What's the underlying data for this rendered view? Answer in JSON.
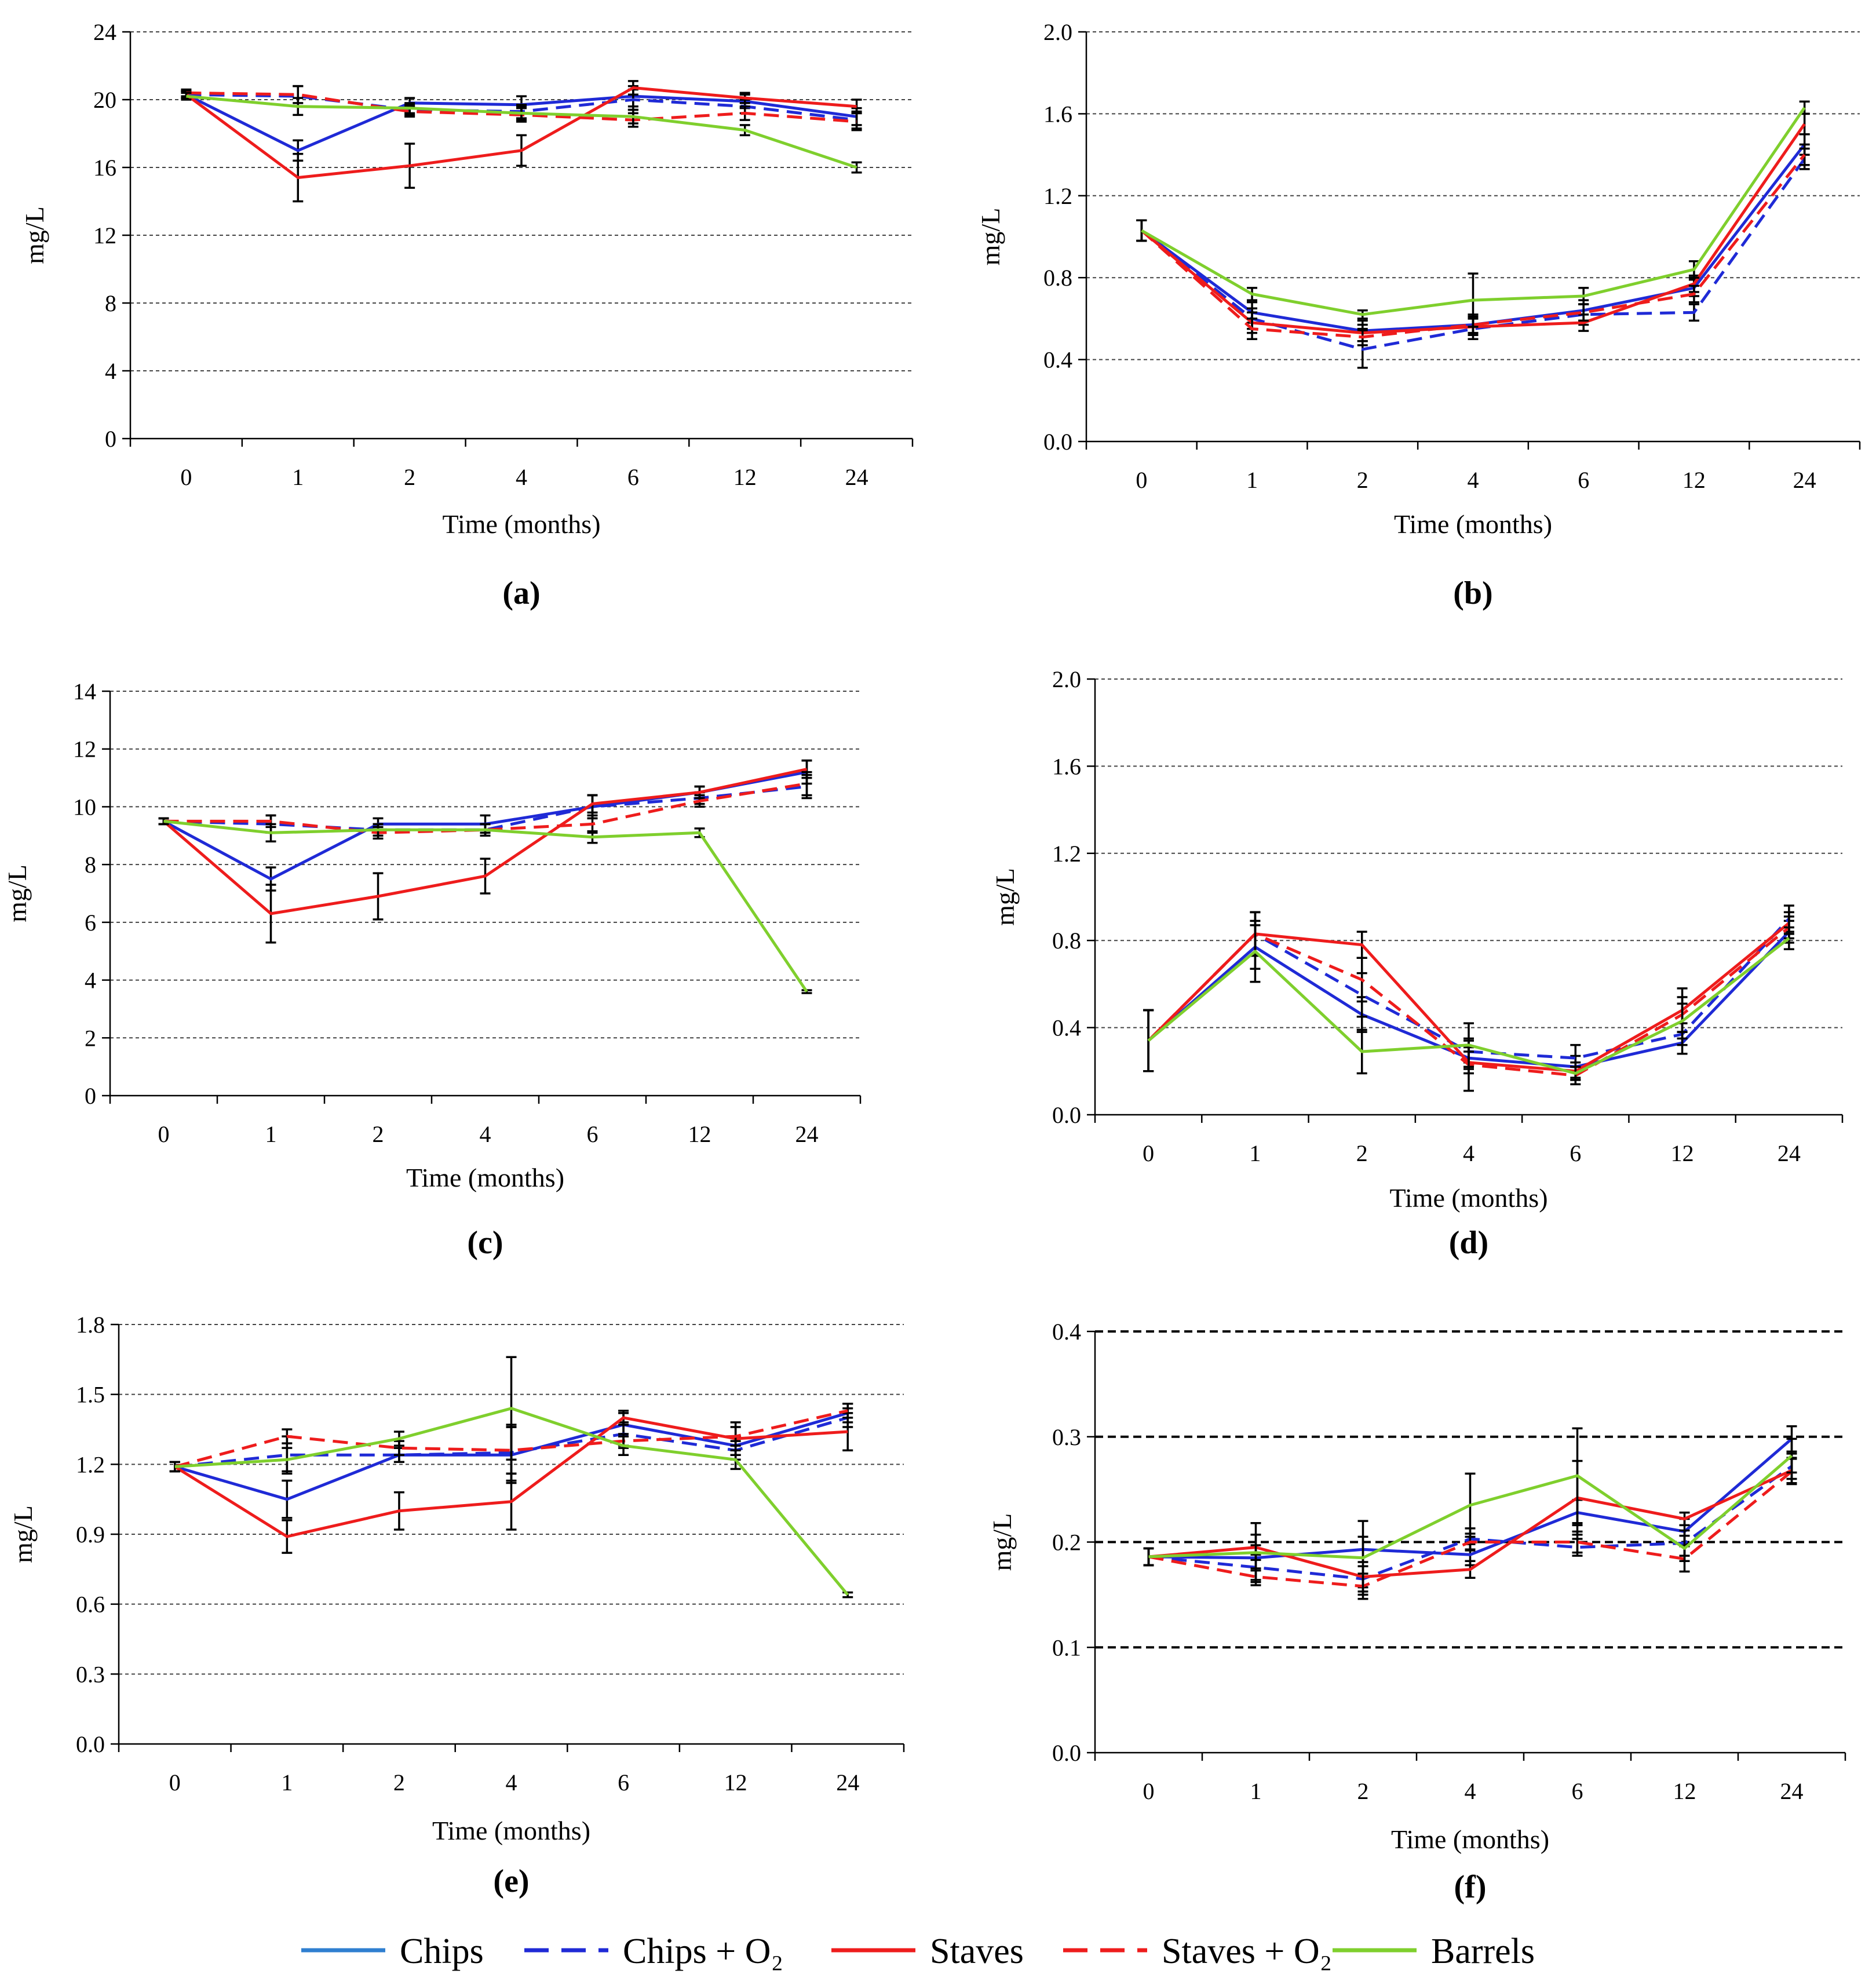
{
  "colors": {
    "chips": "#1f2ad6",
    "chips_o2": "#1f2ad6",
    "staves": "#ee1c1c",
    "staves_o2": "#ee1c1c",
    "barrels": "#7fcf2d",
    "legend_chips": "#2f7fd0"
  },
  "legend": [
    {
      "key": "chips",
      "label": "Chips",
      "dashed": false
    },
    {
      "key": "chips_o2",
      "label": "Chips + O₂",
      "dashed": true
    },
    {
      "key": "staves",
      "label": "Staves",
      "dashed": false
    },
    {
      "key": "staves_o2",
      "label": "Staves + O₂",
      "dashed": true
    },
    {
      "key": "barrels",
      "label": "Barrels",
      "dashed": false
    }
  ],
  "chart_data": [
    {
      "id": "a",
      "type": "line",
      "panel_label": "(a)",
      "categories": [
        "0",
        "1",
        "2",
        "4",
        "6",
        "12",
        "24"
      ],
      "xlabel": "Time (months)",
      "ylabel": "mg/L",
      "ylim": [
        0,
        24
      ],
      "yticks": [
        "0",
        "4",
        "8",
        "12",
        "16",
        "20",
        "24"
      ],
      "series": [
        {
          "name": "Chips",
          "key": "chips",
          "values": [
            20.3,
            17.0,
            19.8,
            19.7,
            20.2,
            19.9,
            19.0
          ],
          "err": [
            0.2,
            0.6,
            0.3,
            0.5,
            0.6,
            0.4,
            0.5
          ]
        },
        {
          "name": "Chips + O2",
          "key": "chips_o2",
          "values": [
            20.3,
            20.2,
            19.4,
            19.3,
            20.0,
            19.6,
            18.8
          ],
          "err": [
            0.2,
            0.6,
            0.3,
            0.4,
            0.6,
            0.4,
            0.5
          ]
        },
        {
          "name": "Staves",
          "key": "staves",
          "values": [
            20.3,
            15.4,
            16.1,
            17.0,
            20.7,
            20.1,
            19.6
          ],
          "err": [
            0.2,
            1.4,
            1.3,
            0.9,
            0.4,
            0.3,
            0.4
          ]
        },
        {
          "name": "Staves + O2",
          "key": "staves_o2",
          "values": [
            20.4,
            20.3,
            19.3,
            19.1,
            18.8,
            19.2,
            18.7
          ],
          "err": [
            0.2,
            0.5,
            0.3,
            0.4,
            0.4,
            0.4,
            0.5
          ]
        },
        {
          "name": "Barrels",
          "key": "barrels",
          "values": [
            20.2,
            19.6,
            19.5,
            19.2,
            19.0,
            18.2,
            16.0
          ],
          "err": [
            0.2,
            0.5,
            0.3,
            0.4,
            0.4,
            0.3,
            0.3
          ]
        }
      ]
    },
    {
      "id": "b",
      "type": "line",
      "panel_label": "(b)",
      "categories": [
        "0",
        "1",
        "2",
        "4",
        "6",
        "12",
        "24"
      ],
      "xlabel": "Time (months)",
      "ylabel": "mg/L",
      "ylim": [
        0,
        2
      ],
      "yticks": [
        "0.0",
        "0.4",
        "0.8",
        "1.2",
        "1.6",
        "2.0"
      ],
      "series": [
        {
          "name": "Chips",
          "key": "chips",
          "values": [
            1.03,
            0.63,
            0.54,
            0.57,
            0.64,
            0.75,
            1.45
          ],
          "err": [
            0.05,
            0.05,
            0.05,
            0.05,
            0.05,
            0.04,
            0.05
          ]
        },
        {
          "name": "Chips + O2",
          "key": "chips_o2",
          "values": [
            1.03,
            0.6,
            0.45,
            0.55,
            0.62,
            0.63,
            1.38
          ],
          "err": [
            0.05,
            0.05,
            0.09,
            0.05,
            0.05,
            0.04,
            0.05
          ]
        },
        {
          "name": "Staves",
          "key": "staves",
          "values": [
            1.03,
            0.58,
            0.53,
            0.56,
            0.58,
            0.77,
            1.55
          ],
          "err": [
            0.05,
            0.05,
            0.04,
            0.04,
            0.04,
            0.04,
            0.05
          ]
        },
        {
          "name": "Staves + O2",
          "key": "staves_o2",
          "values": [
            1.03,
            0.55,
            0.51,
            0.57,
            0.63,
            0.72,
            1.4
          ],
          "err": [
            0.05,
            0.05,
            0.04,
            0.04,
            0.04,
            0.04,
            0.05
          ]
        },
        {
          "name": "Barrels",
          "key": "barrels",
          "values": [
            1.03,
            0.72,
            0.62,
            0.69,
            0.71,
            0.84,
            1.63
          ],
          "err": [
            0.05,
            0.03,
            0.02,
            0.13,
            0.04,
            0.04,
            0.03
          ]
        }
      ]
    },
    {
      "id": "c",
      "type": "line",
      "panel_label": "(c)",
      "categories": [
        "0",
        "1",
        "2",
        "4",
        "6",
        "12",
        "24"
      ],
      "xlabel": "Time (months)",
      "ylabel": "mg/L",
      "ylim": [
        0,
        14
      ],
      "yticks": [
        "0",
        "2",
        "4",
        "6",
        "8",
        "10",
        "12",
        "14"
      ],
      "series": [
        {
          "name": "Chips",
          "key": "chips",
          "values": [
            9.5,
            7.5,
            9.4,
            9.4,
            10.0,
            10.5,
            11.2
          ],
          "err": [
            0.1,
            0.4,
            0.2,
            0.3,
            0.4,
            0.2,
            0.4
          ]
        },
        {
          "name": "Chips + O2",
          "key": "chips_o2",
          "values": [
            9.5,
            9.4,
            9.2,
            9.2,
            10.0,
            10.3,
            10.7
          ],
          "err": [
            0.1,
            0.3,
            0.2,
            0.2,
            0.4,
            0.2,
            0.4
          ]
        },
        {
          "name": "Staves",
          "key": "staves",
          "values": [
            9.5,
            6.3,
            6.9,
            7.6,
            10.1,
            10.5,
            11.3
          ],
          "err": [
            0.1,
            1.0,
            0.8,
            0.6,
            0.3,
            0.2,
            0.3
          ]
        },
        {
          "name": "Staves + O2",
          "key": "staves_o2",
          "values": [
            9.5,
            9.5,
            9.1,
            9.2,
            9.4,
            10.2,
            10.8
          ],
          "err": [
            0.1,
            0.2,
            0.2,
            0.2,
            0.3,
            0.2,
            0.4
          ]
        },
        {
          "name": "Barrels",
          "key": "barrels",
          "values": [
            9.5,
            9.1,
            9.2,
            9.2,
            8.95,
            9.1,
            3.6
          ],
          "err": [
            0.1,
            0.3,
            0.2,
            0.2,
            0.2,
            0.15,
            0.05
          ]
        }
      ]
    },
    {
      "id": "d",
      "type": "line",
      "panel_label": "(d)",
      "categories": [
        "0",
        "1",
        "2",
        "4",
        "6",
        "12",
        "24"
      ],
      "xlabel": "Time (months)",
      "ylabel": "mg/L",
      "ylim": [
        0,
        2
      ],
      "yticks": [
        "0.0",
        "0.4",
        "0.8",
        "1.2",
        "1.6",
        "2.0"
      ],
      "series": [
        {
          "name": "Chips",
          "key": "chips",
          "values": [
            0.34,
            0.77,
            0.46,
            0.26,
            0.22,
            0.33,
            0.84
          ],
          "err": [
            0.14,
            0.1,
            0.08,
            0.05,
            0.05,
            0.05,
            0.05
          ]
        },
        {
          "name": "Chips + O2",
          "key": "chips_o2",
          "values": [
            0.34,
            0.83,
            0.55,
            0.29,
            0.26,
            0.37,
            0.9
          ],
          "err": [
            0.14,
            0.1,
            0.1,
            0.05,
            0.06,
            0.05,
            0.06
          ]
        },
        {
          "name": "Staves",
          "key": "staves",
          "values": [
            0.34,
            0.83,
            0.78,
            0.24,
            0.2,
            0.48,
            0.88
          ],
          "err": [
            0.14,
            0.1,
            0.06,
            0.05,
            0.04,
            0.1,
            0.05
          ]
        },
        {
          "name": "Staves + O2",
          "key": "staves_o2",
          "values": [
            0.34,
            0.83,
            0.62,
            0.23,
            0.18,
            0.46,
            0.86
          ],
          "err": [
            0.14,
            0.1,
            0.1,
            0.12,
            0.04,
            0.08,
            0.05
          ]
        },
        {
          "name": "Barrels",
          "key": "barrels",
          "values": [
            0.34,
            0.75,
            0.29,
            0.32,
            0.19,
            0.43,
            0.81
          ],
          "err": [
            0.14,
            0.14,
            0.1,
            0.1,
            0.03,
            0.08,
            0.05
          ]
        }
      ]
    },
    {
      "id": "e",
      "type": "line",
      "panel_label": "(e)",
      "categories": [
        "0",
        "1",
        "2",
        "4",
        "6",
        "12",
        "24"
      ],
      "xlabel": "Time (months)",
      "ylabel": "mg/L",
      "ylim": [
        0,
        1.8
      ],
      "yticks": [
        "0.0",
        "0.3",
        "0.6",
        "0.9",
        "1.2",
        "1.5",
        "1.8"
      ],
      "series": [
        {
          "name": "Chips",
          "key": "chips",
          "values": [
            1.19,
            1.05,
            1.24,
            1.24,
            1.37,
            1.28,
            1.42
          ],
          "err": [
            0.02,
            0.08,
            0.03,
            0.12,
            0.05,
            0.04,
            0.04
          ]
        },
        {
          "name": "Chips + O2",
          "key": "chips_o2",
          "values": [
            1.19,
            1.24,
            1.24,
            1.25,
            1.33,
            1.26,
            1.4
          ],
          "err": [
            0.02,
            0.08,
            0.03,
            0.12,
            0.05,
            0.04,
            0.04
          ]
        },
        {
          "name": "Staves",
          "key": "staves",
          "values": [
            1.19,
            0.89,
            1.0,
            1.04,
            1.4,
            1.31,
            1.34
          ],
          "err": [
            0.02,
            0.07,
            0.08,
            0.12,
            0.03,
            0.07,
            0.08
          ]
        },
        {
          "name": "Staves + O2",
          "key": "staves_o2",
          "values": [
            1.19,
            1.32,
            1.27,
            1.26,
            1.3,
            1.32,
            1.43
          ],
          "err": [
            0.02,
            0.03,
            0.03,
            0.1,
            0.03,
            0.04,
            0.03
          ]
        },
        {
          "name": "Barrels",
          "key": "barrels",
          "values": [
            1.19,
            1.22,
            1.31,
            1.44,
            1.28,
            1.22,
            0.64
          ],
          "err": [
            0.02,
            0.05,
            0.03,
            0.22,
            0.04,
            0.04,
            0.01
          ]
        }
      ]
    },
    {
      "id": "f",
      "type": "line",
      "panel_label": "(f)",
      "categories": [
        "0",
        "1",
        "2",
        "4",
        "6",
        "12",
        "24"
      ],
      "xlabel": "Time (months)",
      "ylabel": "mg/L",
      "ylim": [
        0,
        0.4
      ],
      "yticks": [
        "0.0",
        "0.1",
        "0.2",
        "0.3",
        "0.4"
      ],
      "series": [
        {
          "name": "Chips",
          "key": "chips",
          "values": [
            0.186,
            0.185,
            0.193,
            0.188,
            0.228,
            0.21,
            0.298
          ],
          "err": [
            0.008,
            0.012,
            0.012,
            0.01,
            0.012,
            0.012,
            0.012
          ]
        },
        {
          "name": "Chips + O2",
          "key": "chips_o2",
          "values": [
            0.186,
            0.176,
            0.165,
            0.203,
            0.195,
            0.199,
            0.272
          ],
          "err": [
            0.008,
            0.012,
            0.012,
            0.01,
            0.008,
            0.012,
            0.012
          ]
        },
        {
          "name": "Staves",
          "key": "staves",
          "values": [
            0.186,
            0.195,
            0.167,
            0.174,
            0.242,
            0.222,
            0.268
          ],
          "err": [
            0.008,
            0.012,
            0.01,
            0.008,
            0.035,
            0.006,
            0.012
          ]
        },
        {
          "name": "Staves + O2",
          "key": "staves_o2",
          "values": [
            0.186,
            0.167,
            0.158,
            0.2,
            0.2,
            0.184,
            0.267
          ],
          "err": [
            0.008,
            0.008,
            0.012,
            0.008,
            0.01,
            0.012,
            0.012
          ]
        },
        {
          "name": "Barrels",
          "key": "barrels",
          "values": [
            0.186,
            0.19,
            0.185,
            0.235,
            0.263,
            0.194,
            0.282
          ],
          "err": [
            0.008,
            0.028,
            0.035,
            0.03,
            0.045,
            0.012,
            0.016
          ]
        }
      ]
    }
  ]
}
